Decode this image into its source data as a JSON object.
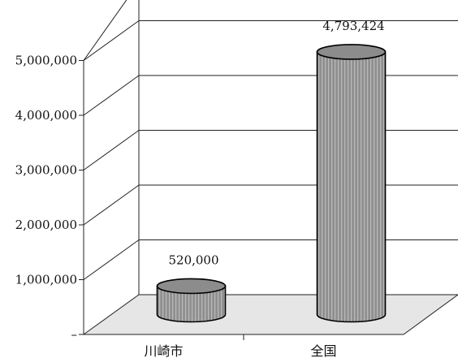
{
  "chart_data": {
    "type": "bar",
    "style": "3d-cylinder",
    "categories": [
      "川崎市",
      "全国"
    ],
    "values": [
      520000,
      4793424
    ],
    "data_labels": [
      "520,000",
      "4,793,424"
    ],
    "ylim": [
      0,
      5000000
    ],
    "y_ticks": [
      0,
      1000000,
      2000000,
      3000000,
      4000000,
      5000000
    ],
    "y_tick_labels": [
      "–",
      "1,000,000",
      "2,000,000",
      "3,000,000",
      "4,000,000",
      "5,000,000"
    ],
    "grid": true,
    "legend": "none",
    "colors": {
      "bar": "#9a9a9a",
      "floor": "#e6e6e6",
      "outline": "#000000"
    }
  }
}
